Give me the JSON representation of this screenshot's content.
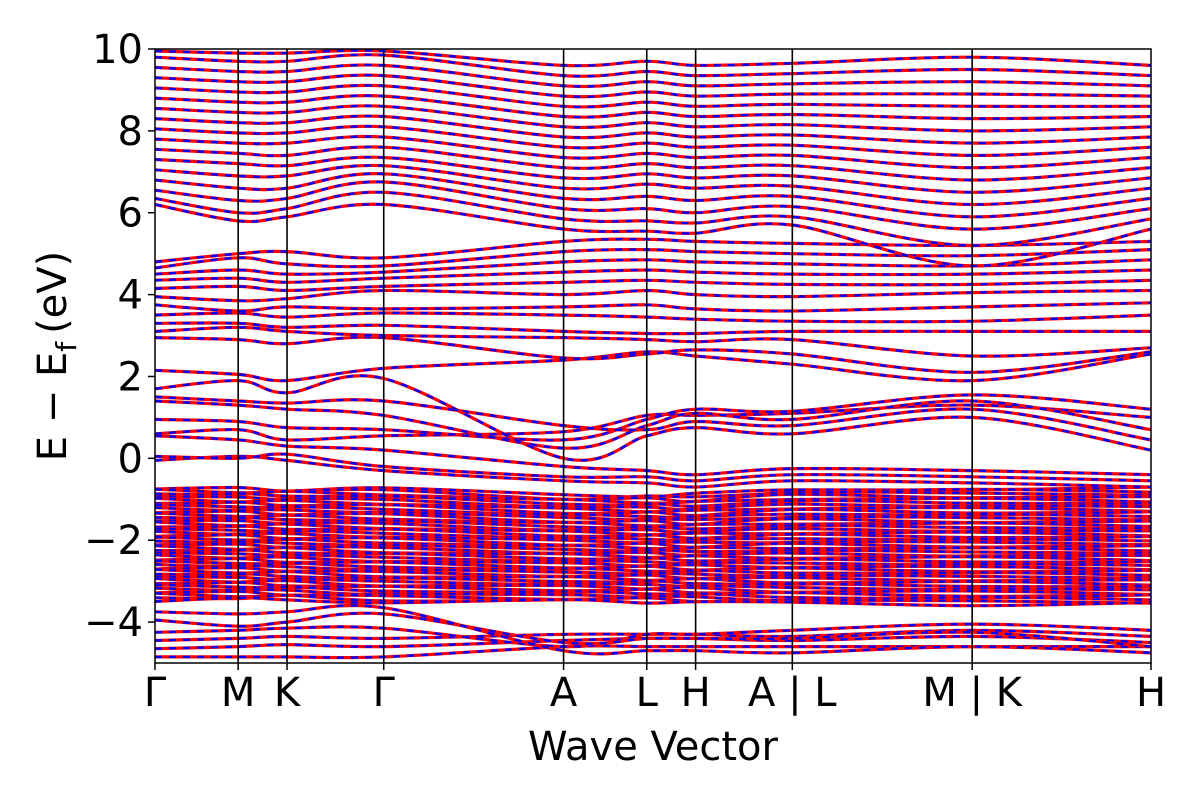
{
  "chart_data": {
    "type": "line",
    "title": "",
    "xlabel": "Wave Vector",
    "ylabel": "E − E",
    "ylabel_sub": "f",
    "ylabel_unit": "(eV)",
    "ylim": [
      -5,
      10
    ],
    "yticks": [
      -4,
      -2,
      0,
      2,
      4,
      6,
      8,
      10
    ],
    "ytick_labels": [
      "−4",
      "−2",
      "0",
      "2",
      "4",
      "6",
      "8",
      "10"
    ],
    "kpath": [
      {
        "label": "Γ",
        "x": 0.0
      },
      {
        "label": "M",
        "x": 0.8
      },
      {
        "label": "K",
        "x": 1.27
      },
      {
        "label": "Γ",
        "x": 2.2
      },
      {
        "label": "A",
        "x": 3.93
      },
      {
        "label": "L",
        "x": 4.73
      },
      {
        "label": "H",
        "x": 5.2
      },
      {
        "label": "A | L",
        "x": 6.13
      },
      {
        "label": "M | K",
        "x": 7.86
      },
      {
        "label": "H",
        "x": 9.58
      }
    ],
    "xlim": [
      0,
      9.58
    ],
    "grid": false,
    "legend": "none",
    "series": [
      {
        "color": "#ff0000",
        "style": "solid"
      },
      {
        "color": "#0000ff",
        "style": "dashed"
      }
    ],
    "bands": [
      {
        "group": "deep",
        "values": [
          -4.85,
          -4.85,
          -4.85,
          -4.85,
          -4.6,
          -4.6,
          -4.6,
          -4.6,
          -4.6,
          -4.6
        ]
      },
      {
        "group": "deep",
        "values": [
          -4.65,
          -4.6,
          -4.55,
          -4.6,
          -4.45,
          -4.4,
          -4.4,
          -4.45,
          -4.35,
          -4.5
        ]
      },
      {
        "group": "deep",
        "values": [
          -4.45,
          -4.4,
          -4.35,
          -4.4,
          -4.3,
          -4.3,
          -4.3,
          -4.35,
          -4.2,
          -4.35
        ]
      },
      {
        "group": "deep",
        "values": [
          -4.25,
          -4.2,
          -4.15,
          -4.15,
          -4.6,
          -4.3,
          -4.3,
          -4.2,
          -4.05,
          -4.2
        ]
      },
      {
        "group": "deep",
        "values": [
          -3.95,
          -4.1,
          -4.0,
          -3.8,
          -4.5,
          -4.4,
          -4.4,
          -4.4,
          -4.25,
          -4.6
        ]
      },
      {
        "group": "deep",
        "values": [
          -3.75,
          -3.8,
          -3.75,
          -3.65,
          -4.7,
          -4.7,
          -4.7,
          -4.75,
          -4.6,
          -4.75
        ]
      },
      {
        "group": "lo",
        "values": [
          -0.05,
          0.05,
          -0.05,
          -0.3,
          -0.55,
          -0.6,
          -0.7,
          -0.55,
          -0.6,
          -0.7
        ]
      },
      {
        "group": "lo",
        "values": [
          0.05,
          0.0,
          0.1,
          -0.2,
          -0.45,
          -0.45,
          -0.55,
          -0.4,
          -0.45,
          -0.55
        ]
      },
      {
        "group": "lo",
        "values": [
          0.55,
          0.45,
          0.3,
          0.2,
          -0.2,
          -0.3,
          -0.4,
          -0.25,
          -0.3,
          -0.4
        ]
      },
      {
        "group": "lo",
        "values": [
          0.6,
          0.7,
          0.45,
          0.55,
          0.65,
          1.05,
          1.05,
          1.1,
          1.3,
          1.0
        ]
      },
      {
        "group": "lo",
        "values": [
          0.95,
          0.9,
          0.75,
          0.7,
          0.45,
          0.95,
          1.2,
          1.15,
          1.55,
          1.2
        ]
      },
      {
        "group": "lo",
        "values": [
          1.4,
          1.3,
          1.2,
          1.05,
          0.25,
          0.8,
          1.1,
          0.95,
          1.4,
          0.7
        ]
      },
      {
        "group": "lo",
        "values": [
          1.5,
          1.4,
          1.35,
          1.4,
          0.8,
          0.7,
          0.9,
          0.8,
          1.2,
          0.45
        ]
      },
      {
        "group": "lo",
        "values": [
          1.7,
          1.9,
          1.6,
          1.95,
          0.0,
          0.55,
          0.75,
          0.6,
          1.0,
          0.2
        ]
      },
      {
        "group": "lo",
        "values": [
          2.15,
          2.05,
          1.9,
          2.2,
          2.4,
          2.6,
          2.5,
          2.3,
          1.9,
          2.55
        ]
      },
      {
        "group": "mid",
        "values": [
          2.95,
          2.9,
          2.8,
          2.95,
          2.45,
          2.55,
          2.65,
          2.55,
          2.1,
          2.6
        ]
      },
      {
        "group": "mid",
        "values": [
          3.1,
          3.2,
          3.1,
          3.0,
          2.95,
          2.9,
          2.85,
          2.9,
          2.5,
          2.7
        ]
      },
      {
        "group": "mid",
        "values": [
          3.3,
          3.3,
          3.2,
          3.25,
          3.1,
          3.05,
          3.05,
          3.1,
          3.1,
          3.1
        ]
      },
      {
        "group": "mid",
        "values": [
          3.5,
          3.55,
          3.45,
          3.55,
          3.5,
          3.45,
          3.4,
          3.35,
          3.35,
          3.5
        ]
      },
      {
        "group": "mid",
        "values": [
          3.75,
          3.6,
          3.7,
          3.65,
          3.7,
          3.75,
          3.65,
          3.6,
          3.7,
          3.8
        ]
      },
      {
        "group": "mid",
        "values": [
          3.95,
          3.85,
          3.9,
          4.1,
          4.0,
          4.1,
          4.0,
          3.95,
          4.05,
          4.1
        ]
      },
      {
        "group": "mid",
        "values": [
          4.15,
          4.2,
          4.1,
          4.2,
          4.3,
          4.35,
          4.3,
          4.25,
          4.25,
          4.35
        ]
      },
      {
        "group": "mid",
        "values": [
          4.35,
          4.4,
          4.3,
          4.4,
          4.55,
          4.6,
          4.55,
          4.5,
          4.5,
          4.6
        ]
      },
      {
        "group": "mid",
        "values": [
          4.5,
          4.6,
          4.5,
          4.55,
          4.8,
          4.85,
          4.8,
          4.75,
          4.7,
          4.85
        ]
      },
      {
        "group": "mid",
        "values": [
          4.65,
          4.9,
          4.75,
          4.7,
          5.05,
          5.1,
          5.05,
          5.0,
          4.95,
          5.1
        ]
      },
      {
        "group": "mid",
        "values": [
          4.8,
          5.0,
          5.05,
          4.9,
          5.3,
          5.35,
          5.3,
          5.25,
          5.2,
          5.3
        ]
      },
      {
        "group": "hi",
        "values": [
          6.2,
          5.8,
          5.9,
          6.2,
          5.6,
          5.55,
          5.5,
          5.7,
          4.7,
          5.6
        ]
      },
      {
        "group": "hi",
        "values": [
          6.35,
          6.0,
          6.1,
          6.5,
          5.85,
          5.8,
          5.75,
          5.9,
          5.2,
          5.85
        ]
      },
      {
        "group": "hi",
        "values": [
          6.55,
          6.3,
          6.35,
          6.75,
          6.1,
          6.1,
          6.0,
          6.15,
          5.6,
          6.1
        ]
      },
      {
        "group": "hi",
        "values": [
          6.8,
          6.6,
          6.6,
          6.95,
          6.35,
          6.4,
          6.3,
          6.4,
          5.9,
          6.35
        ]
      },
      {
        "group": "hi",
        "values": [
          7.05,
          6.9,
          6.9,
          7.15,
          6.6,
          6.7,
          6.6,
          6.65,
          6.2,
          6.6
        ]
      },
      {
        "group": "hi",
        "values": [
          7.3,
          7.2,
          7.15,
          7.35,
          6.85,
          6.95,
          6.85,
          6.9,
          6.5,
          6.85
        ]
      },
      {
        "group": "hi",
        "values": [
          7.55,
          7.45,
          7.4,
          7.6,
          7.1,
          7.2,
          7.1,
          7.15,
          6.8,
          7.1
        ]
      },
      {
        "group": "hi",
        "values": [
          7.8,
          7.7,
          7.7,
          7.85,
          7.35,
          7.45,
          7.35,
          7.4,
          7.1,
          7.35
        ]
      },
      {
        "group": "hi",
        "values": [
          8.05,
          7.95,
          7.95,
          8.1,
          7.6,
          7.7,
          7.6,
          7.65,
          7.4,
          7.6
        ]
      },
      {
        "group": "hi",
        "values": [
          8.3,
          8.2,
          8.2,
          8.35,
          7.85,
          7.95,
          7.85,
          7.9,
          7.7,
          7.85
        ]
      },
      {
        "group": "hi",
        "values": [
          8.55,
          8.45,
          8.45,
          8.6,
          8.1,
          8.2,
          8.1,
          8.15,
          8.0,
          8.1
        ]
      },
      {
        "group": "hi",
        "values": [
          8.8,
          8.7,
          8.7,
          8.85,
          8.35,
          8.45,
          8.35,
          8.4,
          8.3,
          8.35
        ]
      },
      {
        "group": "hi",
        "values": [
          9.05,
          8.95,
          8.95,
          9.1,
          8.6,
          8.7,
          8.6,
          8.65,
          8.6,
          8.6
        ]
      },
      {
        "group": "hi",
        "values": [
          9.3,
          9.2,
          9.2,
          9.35,
          8.85,
          8.95,
          8.85,
          8.9,
          8.9,
          8.85
        ]
      },
      {
        "group": "hi",
        "values": [
          9.55,
          9.45,
          9.45,
          9.6,
          9.1,
          9.2,
          9.1,
          9.15,
          9.2,
          9.1
        ]
      },
      {
        "group": "hi",
        "values": [
          9.8,
          9.7,
          9.7,
          9.85,
          9.35,
          9.45,
          9.35,
          9.4,
          9.5,
          9.35
        ]
      },
      {
        "group": "hi",
        "values": [
          9.95,
          9.9,
          9.9,
          9.95,
          9.6,
          9.7,
          9.6,
          9.65,
          9.8,
          9.6
        ]
      }
    ],
    "dense_block": {
      "top": [
        -0.75,
        -0.75,
        -0.75,
        -0.75,
        -0.9,
        -0.9,
        -0.9,
        -0.75,
        -0.75,
        -0.75
      ],
      "bottom": [
        -3.45,
        -3.45,
        -3.45,
        -3.5,
        -3.5,
        -3.5,
        -3.5,
        -3.55,
        -3.55,
        -3.55
      ],
      "count": 52
    }
  }
}
